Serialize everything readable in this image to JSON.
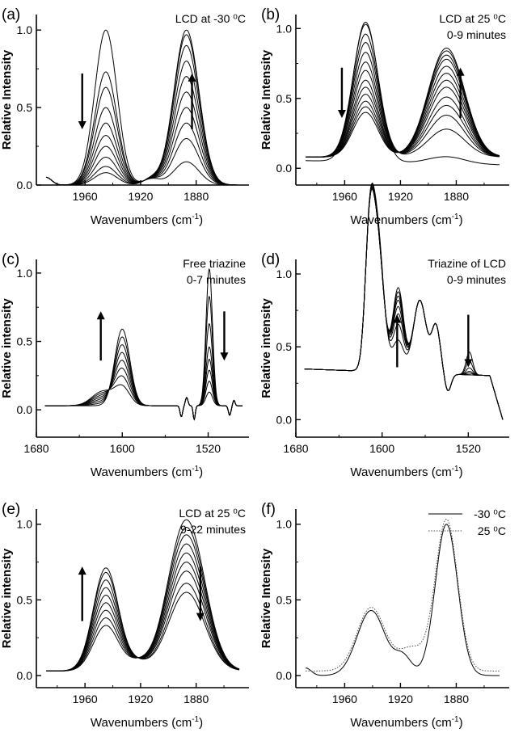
{
  "chart_data": [
    {
      "panel_label": "(a)",
      "type": "line",
      "xlabel": "Wavenumbers (cm",
      "xlabel_sup": "-1",
      "xlabel_end": ")",
      "ylabel": "Relative Intensity",
      "annotation_lines": [
        "LCD at -30 ⁰C"
      ],
      "xlim": [
        1995,
        1842
      ],
      "ylim": [
        0,
        1.1
      ],
      "xticks": [
        1960,
        1920,
        1880
      ],
      "yticks": [
        0.0,
        0.5,
        1.0
      ],
      "ytick_labels": [
        "0.0",
        "0.5",
        "1.0"
      ],
      "peak_a": 1945,
      "peak_b": 1887,
      "width_a": 8,
      "width_b": 9,
      "series": [
        {
          "amp_a": 1.0,
          "amp_b": 0.15
        },
        {
          "amp_a": 0.73,
          "amp_b": 0.3
        },
        {
          "amp_a": 0.63,
          "amp_b": 0.4
        },
        {
          "amp_a": 0.5,
          "amp_b": 0.5
        },
        {
          "amp_a": 0.4,
          "amp_b": 0.6
        },
        {
          "amp_a": 0.32,
          "amp_b": 0.7
        },
        {
          "amp_a": 0.25,
          "amp_b": 0.8
        },
        {
          "amp_a": 0.18,
          "amp_b": 0.9
        },
        {
          "amp_a": 0.12,
          "amp_b": 0.97
        },
        {
          "amp_a": 0.08,
          "amp_b": 1.0
        }
      ],
      "arrows": [
        {
          "x": 1962,
          "dir": "down"
        },
        {
          "x": 1883,
          "dir": "up"
        }
      ]
    },
    {
      "panel_label": "(b)",
      "type": "line",
      "xlabel": "Wavenumbers (cm",
      "xlabel_sup": "-1",
      "xlabel_end": ")",
      "ylabel": "Relative Intensity",
      "annotation_lines": [
        "LCD at 25 ⁰C",
        "0-9 minutes"
      ],
      "xlim": [
        1995,
        1842
      ],
      "ylim": [
        -0.12,
        1.1
      ],
      "xticks": [
        1960,
        1920,
        1880
      ],
      "yticks": [
        0.0,
        0.5,
        1.0
      ],
      "ytick_labels": [
        "0.0",
        "0.5",
        "1.0"
      ],
      "peak_a": 1945,
      "peak_b": 1887,
      "width_a": 9,
      "width_b": 13,
      "series": [
        {
          "amp_a": 1.0,
          "amp_b": 0.05
        },
        {
          "amp_a": 0.95,
          "amp_b": 0.2
        },
        {
          "amp_a": 0.88,
          "amp_b": 0.3
        },
        {
          "amp_a": 0.82,
          "amp_b": 0.37
        },
        {
          "amp_a": 0.75,
          "amp_b": 0.43
        },
        {
          "amp_a": 0.68,
          "amp_b": 0.5
        },
        {
          "amp_a": 0.62,
          "amp_b": 0.55
        },
        {
          "amp_a": 0.55,
          "amp_b": 0.6
        },
        {
          "amp_a": 0.5,
          "amp_b": 0.65
        },
        {
          "amp_a": 0.45,
          "amp_b": 0.7
        },
        {
          "amp_a": 0.4,
          "amp_b": 0.73
        },
        {
          "amp_a": 0.36,
          "amp_b": 0.76
        },
        {
          "amp_a": 0.32,
          "amp_b": 0.78
        }
      ],
      "arrows": [
        {
          "x": 1962,
          "dir": "down"
        },
        {
          "x": 1877,
          "dir": "up"
        }
      ]
    },
    {
      "panel_label": "(c)",
      "type": "line",
      "xlabel": "Wavenumbers (cm",
      "xlabel_sup": "-1",
      "xlabel_end": ")",
      "ylabel": "Relative intensity",
      "annotation_lines": [
        "Free triazine",
        "0-7 minutes"
      ],
      "xlim": [
        1680,
        1482
      ],
      "ylim": [
        -0.2,
        1.1
      ],
      "xticks": [
        1680,
        1600,
        1520
      ],
      "yticks": [
        0.0,
        0.5,
        1.0
      ],
      "ytick_labels": [
        "0.0",
        "0.5",
        "1.0"
      ],
      "peak_a": 1600,
      "peak_b": 1519,
      "width_a": 7,
      "width_b": 3,
      "series": [
        {
          "amp_a": 0.56,
          "amp_b": 0.1
        },
        {
          "amp_a": 0.5,
          "amp_b": 0.18
        },
        {
          "amp_a": 0.44,
          "amp_b": 0.26
        },
        {
          "amp_a": 0.38,
          "amp_b": 0.34
        },
        {
          "amp_a": 0.32,
          "amp_b": 0.43
        },
        {
          "amp_a": 0.26,
          "amp_b": 0.6
        },
        {
          "amp_a": 0.2,
          "amp_b": 0.8
        },
        {
          "amp_a": 0.13,
          "amp_b": 1.0
        }
      ],
      "arrows": [
        {
          "x": 1620,
          "dir": "up"
        },
        {
          "x": 1505,
          "dir": "down"
        }
      ]
    },
    {
      "panel_label": "(d)",
      "type": "line",
      "xlabel": "Wavenumbers (cm",
      "xlabel_sup": "-1",
      "xlabel_end": ")",
      "ylabel": "Relative intensity",
      "annotation_lines": [
        "Triazine of LCD",
        "0-9 minutes"
      ],
      "xlim": [
        1680,
        1482
      ],
      "ylim": [
        -0.12,
        1.1
      ],
      "xticks": [
        1680,
        1600,
        1520
      ],
      "yticks": [
        0.0,
        0.5,
        1.0
      ],
      "ytick_labels": [
        "0.0",
        "0.5",
        "1.0"
      ],
      "peak_a": 1605,
      "peak_b": 1585,
      "width_a": 6,
      "width_b": 5,
      "series": [
        {
          "amp_a": 1.0,
          "amp_b": 0.3,
          "amp_c": 0.52
        },
        {
          "amp_a": 0.98,
          "amp_b": 0.45,
          "amp_c": 0.47
        },
        {
          "amp_a": 0.97,
          "amp_b": 0.55,
          "amp_c": 0.43
        },
        {
          "amp_a": 0.96,
          "amp_b": 0.62,
          "amp_c": 0.41
        },
        {
          "amp_a": 0.95,
          "amp_b": 0.68,
          "amp_c": 0.4
        },
        {
          "amp_a": 0.95,
          "amp_b": 0.72,
          "amp_c": 0.39
        },
        {
          "amp_a": 0.95,
          "amp_b": 0.76,
          "amp_c": 0.39
        },
        {
          "amp_a": 0.95,
          "amp_b": 0.8,
          "amp_c": 0.39
        }
      ],
      "arrows": [
        {
          "x": 1586,
          "dir": "up"
        },
        {
          "x": 1520,
          "dir": "down"
        }
      ]
    },
    {
      "panel_label": "(e)",
      "type": "line",
      "xlabel": "Wavenumbers (cm",
      "xlabel_sup": "-1",
      "xlabel_end": ")",
      "ylabel": "Relative intensity",
      "annotation_lines": [
        "LCD at 25 ⁰C",
        "9-22 minutes"
      ],
      "xlim": [
        1995,
        1842
      ],
      "ylim": [
        -0.08,
        1.1
      ],
      "xticks": [
        1960,
        1920,
        1880
      ],
      "yticks": [
        0.0,
        0.5,
        1.0
      ],
      "ytick_labels": [
        "0.0",
        "0.5",
        "1.0"
      ],
      "peak_a": 1945,
      "peak_b": 1887,
      "width_a": 9,
      "width_b": 13,
      "series": [
        {
          "amp_a": 0.3,
          "amp_b": 1.0
        },
        {
          "amp_a": 0.35,
          "amp_b": 0.95
        },
        {
          "amp_a": 0.4,
          "amp_b": 0.9
        },
        {
          "amp_a": 0.45,
          "amp_b": 0.84
        },
        {
          "amp_a": 0.5,
          "amp_b": 0.78
        },
        {
          "amp_a": 0.55,
          "amp_b": 0.72
        },
        {
          "amp_a": 0.6,
          "amp_b": 0.66
        },
        {
          "amp_a": 0.65,
          "amp_b": 0.58
        },
        {
          "amp_a": 0.68,
          "amp_b": 0.52
        }
      ],
      "arrows": [
        {
          "x": 1962,
          "dir": "up"
        },
        {
          "x": 1877,
          "dir": "down"
        }
      ]
    },
    {
      "panel_label": "(f)",
      "type": "line",
      "xlabel": "Wavenumbers (cm",
      "xlabel_sup": "-1",
      "xlabel_end": ")",
      "ylabel": "Relative Intensity",
      "annotation_lines": [],
      "xlim": [
        1995,
        1842
      ],
      "ylim": [
        -0.08,
        1.1
      ],
      "xticks": [
        1960,
        1920,
        1880
      ],
      "yticks": [
        0.0,
        0.5,
        1.0
      ],
      "ytick_labels": [
        "0.0",
        "0.5",
        "1.0"
      ],
      "peak_a": 1941,
      "peak_b": 1887,
      "width_a": 10,
      "width_b": 8,
      "legend": {
        "position": "top-right",
        "entries": [
          "-30 ⁰C",
          "25 ⁰C"
        ]
      },
      "series": [
        {
          "name": "-30 ⁰C",
          "style": "solid",
          "amp_a": 0.43,
          "amp_b": 1.0
        },
        {
          "name": "25 ⁰C",
          "style": "dotted",
          "amp_a": 0.42,
          "amp_b": 1.0
        }
      ],
      "arrows": []
    }
  ]
}
